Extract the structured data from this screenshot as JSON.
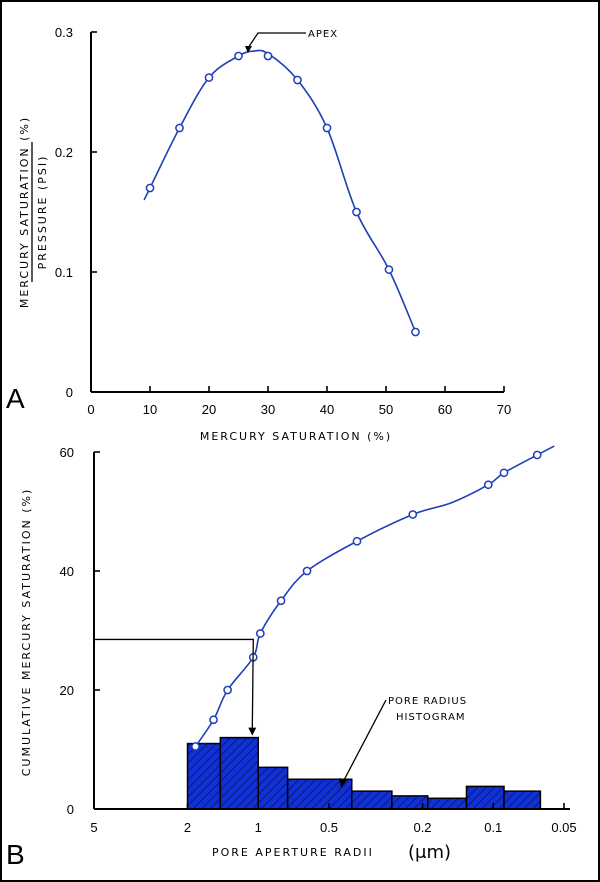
{
  "colors": {
    "curve": "#1f3fb8",
    "histogram_fill": "#1030d8",
    "histogram_hatch": "#0a1a70",
    "axis": "#000000"
  },
  "chart_data": [
    {
      "panel_label": "A",
      "type": "line",
      "ylabel_numerator": "MERCURY SATURATION (%)",
      "ylabel_denominator": "PRESSURE (PSI)",
      "xlabel": "MERCURY SATURATION (%)",
      "xlim": [
        0,
        70
      ],
      "ylim": [
        0,
        0.3
      ],
      "xticks": [
        0,
        10,
        20,
        30,
        40,
        50,
        60,
        70
      ],
      "yticks": [
        0,
        0.1,
        0.2,
        0.3
      ],
      "xtick_labels": [
        "0",
        "10",
        "20",
        "30",
        "40",
        "50",
        "60",
        "70"
      ],
      "ytick_labels": [
        "0",
        "0.1",
        "0.2",
        "0.3"
      ],
      "points": {
        "x": [
          10,
          15,
          20,
          25,
          30,
          35,
          40,
          45,
          50.5,
          55
        ],
        "y": [
          0.17,
          0.22,
          0.262,
          0.28,
          0.28,
          0.26,
          0.22,
          0.15,
          0.102,
          0.05
        ]
      },
      "curve": {
        "x": [
          9,
          10,
          15,
          20,
          25,
          27.5,
          30,
          35,
          40,
          45,
          50.5,
          55
        ],
        "y": [
          0.16,
          0.17,
          0.22,
          0.262,
          0.28,
          0.284,
          0.282,
          0.26,
          0.22,
          0.15,
          0.102,
          0.05
        ]
      },
      "annotation": {
        "text": "APEX",
        "x": 27.5,
        "y": 0.284
      }
    },
    {
      "panel_label": "B",
      "type": "line",
      "ylabel": "CUMULATIVE MERCURY SATURATION (%)",
      "xlabel": "PORE APERTURE RADII",
      "xlabel_unit": "(μm)",
      "xscale": "log",
      "x_reversed": true,
      "xlim": [
        5,
        0.05
      ],
      "ylim": [
        0,
        60
      ],
      "xticks": [
        5,
        2,
        1,
        0.5,
        0.2,
        0.1,
        0.05
      ],
      "xtick_labels": [
        "5",
        "2",
        "1",
        "0.5",
        "0.2",
        "0.1",
        "0.05"
      ],
      "yticks": [
        0,
        20,
        40,
        60
      ],
      "ytick_labels": [
        "0",
        "20",
        "40",
        "60"
      ],
      "points": {
        "x": [
          1.85,
          1.55,
          1.35,
          1.05,
          0.98,
          0.8,
          0.62,
          0.38,
          0.22,
          0.105,
          0.09,
          0.065
        ],
        "y": [
          10.5,
          15,
          20,
          25.5,
          29.5,
          35,
          40,
          45,
          49.5,
          54.5,
          56.5,
          59.5
        ]
      },
      "curve": {
        "x": [
          1.85,
          1.55,
          1.35,
          1.05,
          0.98,
          0.8,
          0.62,
          0.38,
          0.22,
          0.15,
          0.105,
          0.09,
          0.065,
          0.055
        ],
        "y": [
          10.5,
          15,
          20,
          25.5,
          29.5,
          35,
          40,
          45,
          49.5,
          51.5,
          54.5,
          56.5,
          59.5,
          61
        ]
      },
      "histogram_label": "PORE RADIUS HISTOGRAM",
      "histogram": [
        {
          "x0": 2.0,
          "x1": 1.45,
          "y": 11
        },
        {
          "x0": 1.45,
          "x1": 1.0,
          "y": 12
        },
        {
          "x0": 1.0,
          "x1": 0.75,
          "y": 7
        },
        {
          "x0": 0.75,
          "x1": 0.4,
          "y": 5
        },
        {
          "x0": 0.4,
          "x1": 0.27,
          "y": 3
        },
        {
          "x0": 0.27,
          "x1": 0.19,
          "y": 2.2
        },
        {
          "x0": 0.19,
          "x1": 0.13,
          "y": 1.8
        },
        {
          "x0": 0.13,
          "x1": 0.09,
          "y": 3.8
        },
        {
          "x0": 0.09,
          "x1": 0.063,
          "y": 3
        }
      ],
      "apex_guide": {
        "y": 28.5,
        "x": 1.05
      }
    }
  ]
}
